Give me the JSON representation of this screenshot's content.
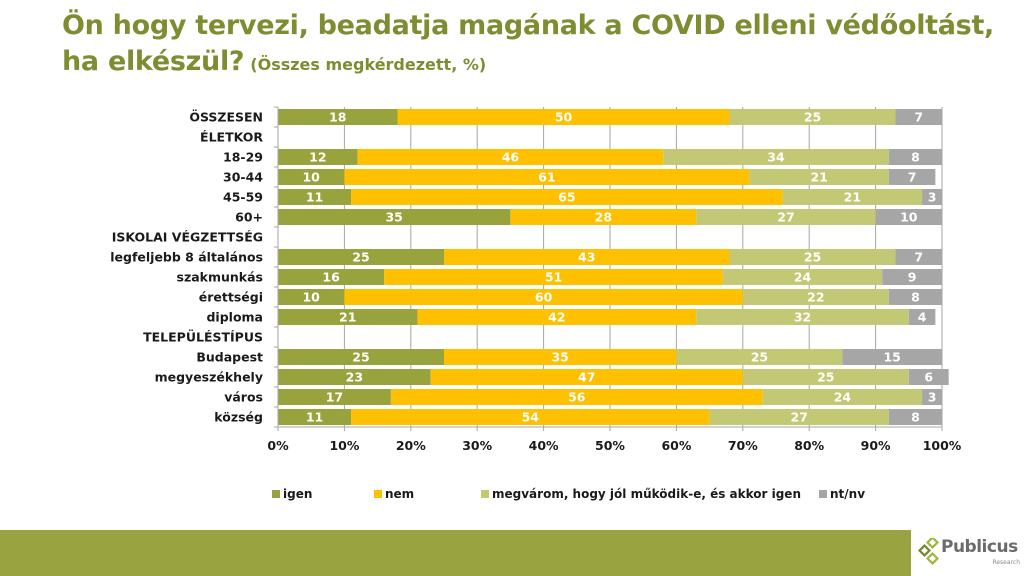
{
  "header": {
    "title_main": "Ön hogy tervezi, beadatja magának a COVID elleni védőoltást, ha elkészül?",
    "title_sub": "(Összes megkérdezett, %)"
  },
  "chart_data": {
    "type": "bar",
    "orientation": "horizontal",
    "stacked": "percent",
    "title": "Ön hogy tervezi, beadatja magának a COVID elleni védőoltást, ha elkészül? (Összes megkérdezett, %)",
    "categories": [
      "ÖSSZESEN",
      "ÉLETKOR",
      "18-29",
      "30-44",
      "45-59",
      "60+",
      "ISKOLAI VÉGZETTSÉG",
      "legfeljebb 8 általános",
      "szakmunkás",
      "érettségi",
      "diploma",
      "TELEPÜLÉSTÍPUS",
      "Budapest",
      "megyeszékhely",
      "város",
      "község"
    ],
    "series": [
      {
        "name": "igen",
        "color": "#98a33e",
        "values": [
          18,
          null,
          12,
          10,
          11,
          35,
          null,
          25,
          16,
          10,
          21,
          null,
          25,
          23,
          17,
          11
        ]
      },
      {
        "name": "nem",
        "color": "#ffc000",
        "values": [
          50,
          null,
          46,
          61,
          65,
          28,
          null,
          43,
          51,
          60,
          42,
          null,
          35,
          47,
          56,
          54
        ]
      },
      {
        "name": "megvárom, hogy jól működik-e, és akkor igen",
        "color": "#c3c874",
        "values": [
          25,
          null,
          34,
          21,
          21,
          27,
          null,
          25,
          24,
          22,
          32,
          null,
          25,
          25,
          24,
          27
        ]
      },
      {
        "name": "nt/nv",
        "color": "#a6a6a6",
        "values": [
          7,
          null,
          8,
          7,
          3,
          10,
          null,
          7,
          9,
          8,
          4,
          null,
          15,
          6,
          3,
          8
        ]
      }
    ],
    "xlim": [
      0,
      100
    ],
    "x_ticks": [
      "0%",
      "10%",
      "20%",
      "30%",
      "40%",
      "50%",
      "60%",
      "70%",
      "80%",
      "90%",
      "100%"
    ],
    "grid": true,
    "legend_position": "bottom"
  },
  "legend": {
    "items": [
      {
        "label": "igen",
        "color": "#98a33e"
      },
      {
        "label": "nem",
        "color": "#ffc000"
      },
      {
        "label": "megvárom, hogy jól működik-e, és akkor igen",
        "color": "#c3c874"
      },
      {
        "label": "nt/nv",
        "color": "#a6a6a6"
      }
    ]
  },
  "footer": {
    "bar_color": "#99a440",
    "logo_name": "Publicus",
    "logo_sub": "Research"
  }
}
